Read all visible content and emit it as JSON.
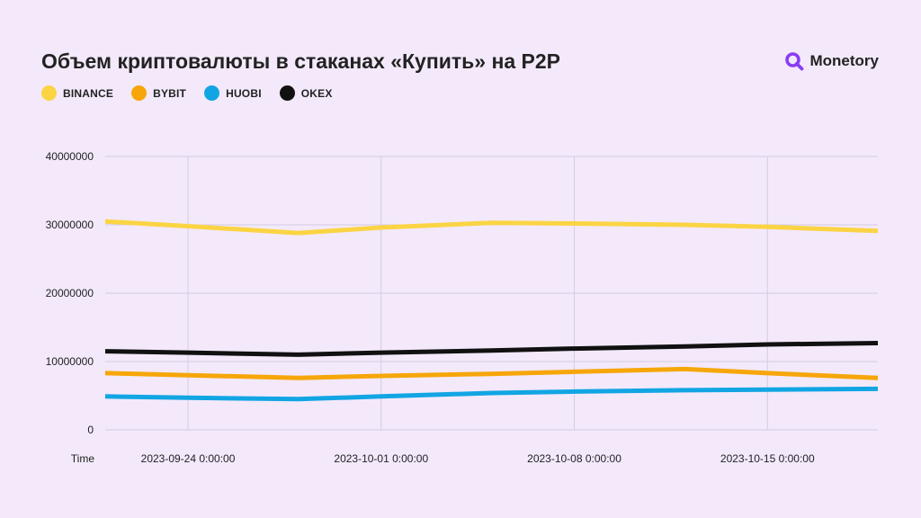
{
  "header": {
    "title": "Объем криптовалюты в стаканах «Купить» на P2P",
    "brand": "Monetory"
  },
  "colors": {
    "background": "#f3e9fb",
    "brand_icon": "#8a3df2",
    "grid": "#d6cce2"
  },
  "icons": {
    "brand_icon": "magnifier-q-icon"
  },
  "chart_data": {
    "type": "line",
    "xlabel": "Time",
    "x_tick_labels": [
      "2023-09-24 0:00:00",
      "2023-10-01 0:00:00",
      "2023-10-08 0:00:00",
      "2023-10-15 0:00:00"
    ],
    "x_tick_dates": [
      "2023-09-24",
      "2023-10-01",
      "2023-10-08",
      "2023-10-15"
    ],
    "x_range": [
      "2023-09-21",
      "2023-10-19"
    ],
    "ylim": [
      0,
      40000000
    ],
    "y_ticks": [
      0,
      10000000,
      20000000,
      30000000,
      40000000
    ],
    "y_tick_labels": [
      "0",
      "10000000",
      "20000000",
      "30000000",
      "40000000"
    ],
    "grid": true,
    "legend_position": "top-left",
    "x": [
      "2023-09-21",
      "2023-09-24",
      "2023-09-28",
      "2023-10-01",
      "2023-10-05",
      "2023-10-08",
      "2023-10-12",
      "2023-10-15",
      "2023-10-19"
    ],
    "series": [
      {
        "name": "BINANCE",
        "color": "#fbd444",
        "values": [
          30500000,
          29800000,
          28800000,
          29600000,
          30300000,
          30200000,
          30000000,
          29700000,
          29100000
        ]
      },
      {
        "name": "BYBIT",
        "color": "#f6a609",
        "values": [
          8300000,
          8000000,
          7600000,
          7900000,
          8200000,
          8500000,
          8900000,
          8300000,
          7600000
        ]
      },
      {
        "name": "HUOBI",
        "color": "#12a5e3",
        "values": [
          4900000,
          4700000,
          4500000,
          4900000,
          5400000,
          5600000,
          5800000,
          5900000,
          6000000
        ]
      },
      {
        "name": "OKEX",
        "color": "#111111",
        "values": [
          11500000,
          11300000,
          11000000,
          11300000,
          11600000,
          11900000,
          12200000,
          12500000,
          12700000
        ]
      }
    ]
  }
}
